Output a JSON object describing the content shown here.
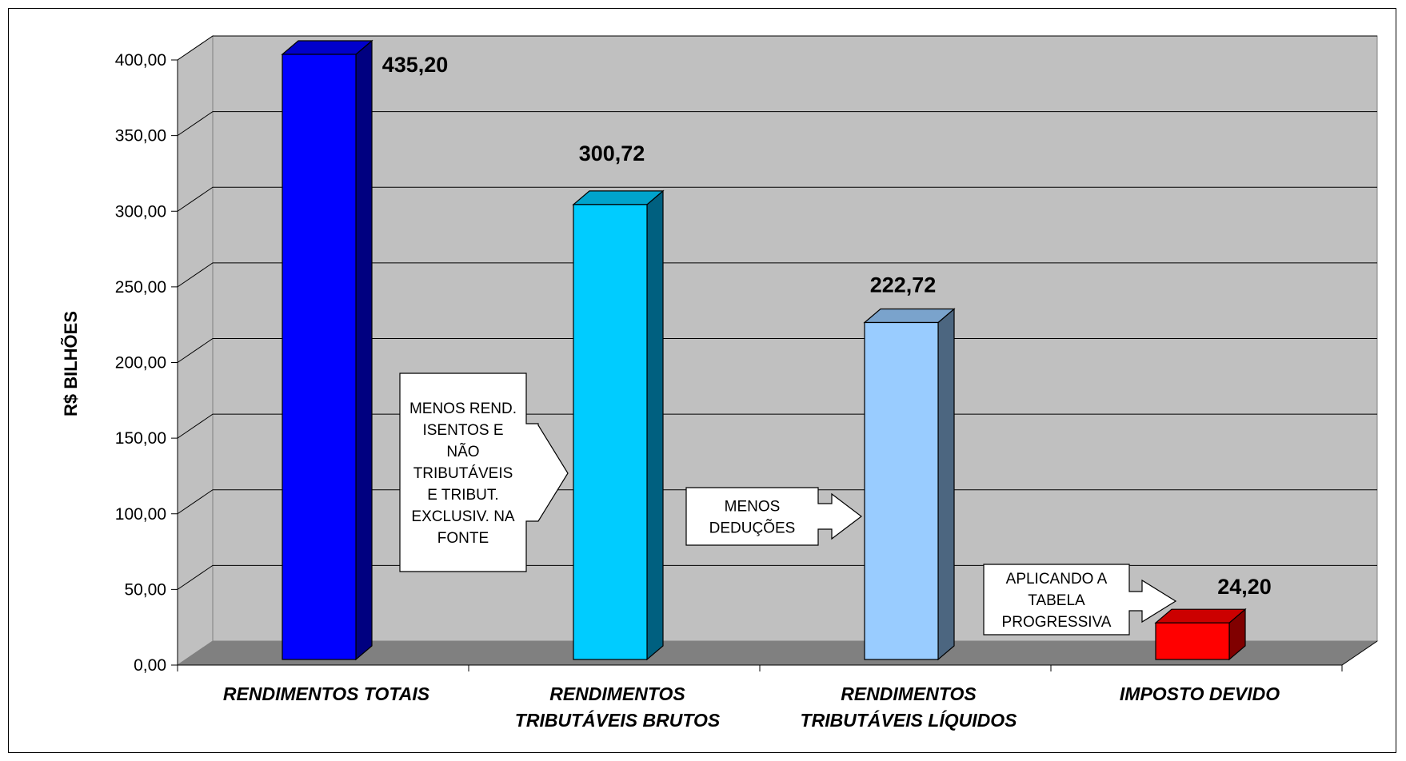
{
  "chart_data": {
    "type": "bar",
    "categories": [
      "RENDIMENTOS TOTAIS",
      "RENDIMENTOS TRIBUTÁVEIS BRUTOS",
      "RENDIMENTOS TRIBUTÁVEIS LÍQUIDOS",
      "IMPOSTO DEVIDO"
    ],
    "category_lines": [
      [
        "RENDIMENTOS TOTAIS"
      ],
      [
        "RENDIMENTOS",
        "TRIBUTÁVEIS BRUTOS"
      ],
      [
        "RENDIMENTOS",
        "TRIBUTÁVEIS LÍQUIDOS"
      ],
      [
        "IMPOSTO DEVIDO"
      ]
    ],
    "values": [
      435.2,
      300.72,
      222.72,
      24.2
    ],
    "data_labels": [
      "435,20",
      "300,72",
      "222,72",
      "24,20"
    ],
    "ylabel": "R$ BILHÕES",
    "ylim": [
      0,
      400
    ],
    "yticks": [
      "0,00",
      "50,00",
      "100,00",
      "150,00",
      "200,00",
      "250,00",
      "300,00",
      "350,00",
      "400,00"
    ],
    "grid": true,
    "colors": [
      {
        "front": "#0000ff",
        "side": "#000080",
        "top": "#0000cc"
      },
      {
        "front": "#00ccff",
        "side": "#006080",
        "top": "#00a3cc"
      },
      {
        "front": "#99ccff",
        "side": "#4c6680",
        "top": "#7aa3cc"
      },
      {
        "front": "#ff0000",
        "side": "#800000",
        "top": "#cc0000"
      }
    ],
    "annotations": [
      {
        "lines": [
          "MENOS REND.",
          "ISENTOS E",
          "NÃO",
          "TRIBUTÁVEIS",
          "E TRIBUT.",
          "EXCLUSIV. NA",
          "FONTE"
        ]
      },
      {
        "lines": [
          "MENOS",
          "DEDUÇÕES"
        ]
      },
      {
        "lines": [
          "APLICANDO A",
          "TABELA",
          "PROGRESSIVA"
        ]
      }
    ]
  }
}
